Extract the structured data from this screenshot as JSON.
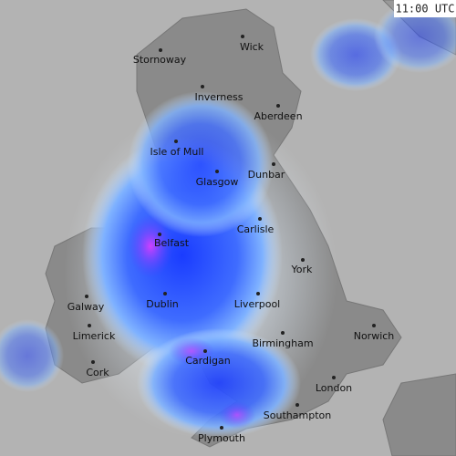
{
  "map": {
    "timestamp": "11:00 UTC",
    "cities": [
      {
        "label": "Wick"
      },
      {
        "label": "Stornoway"
      },
      {
        "label": "Inverness"
      },
      {
        "label": "Aberdeen"
      },
      {
        "label": "Isle of Mull"
      },
      {
        "label": "Dunbar"
      },
      {
        "label": "Glasgow"
      },
      {
        "label": "Carlisle"
      },
      {
        "label": "Belfast"
      },
      {
        "label": "York"
      },
      {
        "label": "Galway"
      },
      {
        "label": "Dublin"
      },
      {
        "label": "Liverpool"
      },
      {
        "label": "Limerick"
      },
      {
        "label": "Norwich"
      },
      {
        "label": "Birmingham"
      },
      {
        "label": "Cork"
      },
      {
        "label": "Cardigan"
      },
      {
        "label": "London"
      },
      {
        "label": "Southampton"
      },
      {
        "label": "Plymouth"
      }
    ]
  }
}
